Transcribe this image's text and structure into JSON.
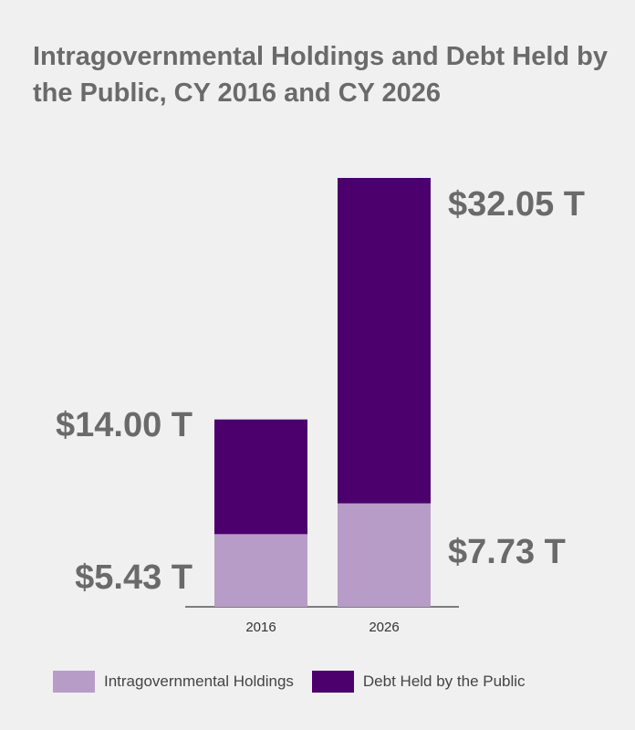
{
  "chart_data": {
    "type": "bar",
    "stacked": true,
    "title": "Intragovernmental Holdings and Debt Held by the Public, CY 2016 and CY 2026",
    "xlabel": "",
    "ylabel": "",
    "categories": [
      "2016",
      "2026"
    ],
    "series": [
      {
        "name": "Intragovernmental Holdings",
        "color": "#b89cc8",
        "values": [
          5.43,
          7.73
        ],
        "value_labels": [
          "$5.43 T",
          "$7.73 T"
        ]
      },
      {
        "name": "Debt Held by the Public",
        "color": "#4b006e",
        "values": [
          8.57,
          24.32
        ],
        "total_labels": [
          "$14.00 T",
          "$32.05 T"
        ]
      }
    ],
    "totals": [
      14.0,
      32.05
    ],
    "ylim": [
      0,
      32.05
    ],
    "grid": false,
    "legend_position": "bottom"
  }
}
